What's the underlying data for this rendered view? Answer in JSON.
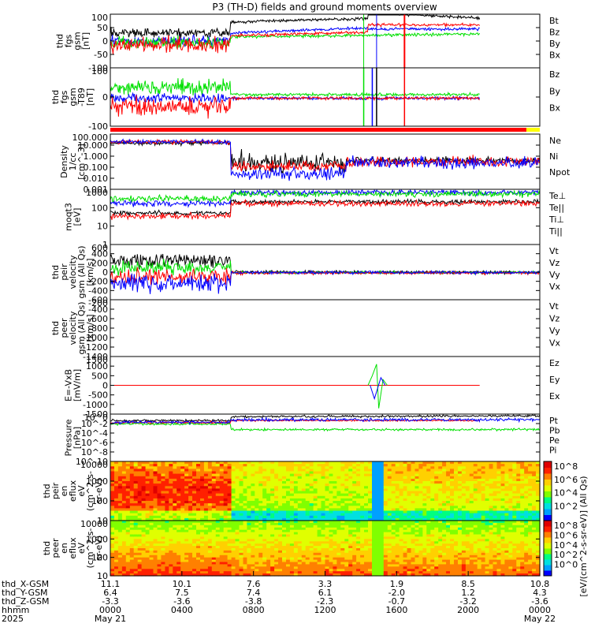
{
  "title": "P3 (TH-D) fields and ground moments overview",
  "colors": {
    "black": "#000000",
    "red": "#ff0000",
    "green": "#00e000",
    "blue": "#0000ff",
    "yellow": "#ffff00",
    "lime": "#00ff00"
  },
  "chart_data": [
    {
      "panel": "fgs",
      "type": "line",
      "ylabel": [
        "thd",
        "fgs",
        "gsm",
        "[nT]"
      ],
      "yticks": [
        "100",
        "50",
        "0",
        "-50",
        "-100"
      ],
      "legend": [
        {
          "name": "Bt",
          "color": "#000000"
        },
        {
          "name": "Bz",
          "color": "#ff0000"
        },
        {
          "name": "By",
          "color": "#00e000"
        },
        {
          "name": "Bx",
          "color": "#0000ff"
        }
      ]
    },
    {
      "panel": "fgs_hp",
      "type": "line",
      "ylabel": [
        "thd",
        "fgs",
        "gsm",
        "-T89",
        "[nT]"
      ],
      "yticks": [
        "100",
        "0",
        "-100"
      ],
      "legend": [
        {
          "name": "Bz",
          "color": "#ff0000"
        },
        {
          "name": "By",
          "color": "#00e000"
        },
        {
          "name": "Bx",
          "color": "#0000ff"
        }
      ]
    },
    {
      "panel": "density",
      "type": "line",
      "ylabel": [
        "Density",
        "1/cc",
        "[cm^-3]"
      ],
      "yticks": [
        "100.000",
        "10.000",
        "1.000",
        "0.100",
        "0.010",
        "0.001"
      ],
      "legend": [
        {
          "name": "Ne",
          "color": "#ff0000"
        },
        {
          "name": "Ni",
          "color": "#000000"
        },
        {
          "name": "Npot",
          "color": "#0000ff"
        }
      ]
    },
    {
      "panel": "temperature",
      "type": "line",
      "ylabel": [
        "moqt3",
        "[eV]"
      ],
      "yticks": [
        "1000",
        "100",
        "10",
        "1"
      ],
      "legend": [
        {
          "name": "Te⊥",
          "color": "#ff0000"
        },
        {
          "name": "Te||",
          "color": "#000000"
        },
        {
          "name": "Ti⊥",
          "color": "#00e000"
        },
        {
          "name": "Ti||",
          "color": "#00e000"
        }
      ]
    },
    {
      "panel": "ion_velocity",
      "type": "line",
      "ylabel": [
        "thd",
        "peir",
        "velocity",
        "gsm (All Qs)",
        "[km/s]"
      ],
      "yticks": [
        "600",
        "400",
        "200",
        "0",
        "-200",
        "-400",
        "-600"
      ],
      "legend": [
        {
          "name": "Vt",
          "color": "#000000"
        },
        {
          "name": "Vz",
          "color": "#ff0000"
        },
        {
          "name": "Vy",
          "color": "#00e000"
        },
        {
          "name": "Vx",
          "color": "#0000ff"
        }
      ]
    },
    {
      "panel": "electron_velocity",
      "type": "line",
      "ylabel": [
        "thd",
        "peer",
        "velocity",
        "gsm (All Qs)",
        "[km/s]"
      ],
      "yticks": [
        "-200",
        "-400",
        "-600",
        "-800",
        "-1000",
        "-1200",
        "-1400"
      ],
      "legend": [
        {
          "name": "Vt",
          "color": "#000000"
        },
        {
          "name": "Vz",
          "color": "#ff0000"
        },
        {
          "name": "Vy",
          "color": "#00e000"
        },
        {
          "name": "Vx",
          "color": "#0000ff"
        }
      ]
    },
    {
      "panel": "efield",
      "type": "line",
      "ylabel": [
        "E=-VxB",
        "[mV/m]"
      ],
      "yticks": [
        "1500",
        "1000",
        "500",
        "0",
        "-500",
        "-1000",
        "-1500"
      ],
      "legend": [
        {
          "name": "Ez",
          "color": "#ff0000"
        },
        {
          "name": "Ey",
          "color": "#00e000"
        },
        {
          "name": "Ex",
          "color": "#0000ff"
        }
      ]
    },
    {
      "panel": "pressure",
      "type": "line",
      "ylabel": [
        "Pressure",
        "[nPa]"
      ],
      "yticks": [
        "10^0",
        "10^-2",
        "10^-4",
        "10^-6",
        "10^-8",
        "10^-10"
      ],
      "legend": [
        {
          "name": "Pt",
          "color": "#000000"
        },
        {
          "name": "Pb",
          "color": "#ff0000"
        },
        {
          "name": "Pe",
          "color": "#00e000"
        },
        {
          "name": "Pi",
          "color": "#0000ff"
        }
      ]
    },
    {
      "panel": "ion_spectrogram",
      "type": "heatmap",
      "ylabel": [
        "thd",
        "peir",
        "en",
        "eflux",
        "eV",
        "(cm^2-s-",
        "sr-eV)"
      ],
      "yticks": [
        "10000",
        "1000",
        "100",
        "10"
      ],
      "colorbar_ticks": [
        "10^8",
        "10^6",
        "10^4",
        "10^2"
      ]
    },
    {
      "panel": "electron_spectrogram",
      "type": "heatmap",
      "ylabel": [
        "thd",
        "peer",
        "en",
        "eflux",
        "eV",
        "(cm^2-s-",
        "sr-eV)"
      ],
      "yticks": [
        "10000",
        "1000",
        "100",
        "10"
      ],
      "colorbar_ticks": [
        "10^8",
        "10^6",
        "10^4",
        "10^2",
        "10^0"
      ],
      "colorbar_label": "[eV/(cm^2-s-sr-eV)] (All Qs)"
    }
  ],
  "xaxis": {
    "rows": [
      {
        "label": "thd_X-GSM",
        "values": [
          "11.1",
          "10.1",
          "7.6",
          "3.3",
          "1.9",
          "8.5",
          "10.8"
        ]
      },
      {
        "label": "thd_Y-GSM",
        "values": [
          "6.4",
          "7.5",
          "7.4",
          "6.1",
          "-2.0",
          "1.2",
          "4.3"
        ]
      },
      {
        "label": "thd_Z-GSM",
        "values": [
          "-3.3",
          "-3.6",
          "-3.8",
          "-2.3",
          "-0.7",
          "-3.2",
          "-3.6"
        ]
      },
      {
        "label": "hhmm",
        "values": [
          "0000",
          "0400",
          "0800",
          "1200",
          "1600",
          "2000",
          "0000"
        ]
      },
      {
        "label": "2025",
        "values": [
          "May 21",
          "",
          "",
          "",
          "",
          "",
          "May 22"
        ]
      }
    ]
  },
  "mode_bar": {
    "color": "#ff0000",
    "end_color": "#ffff00"
  }
}
